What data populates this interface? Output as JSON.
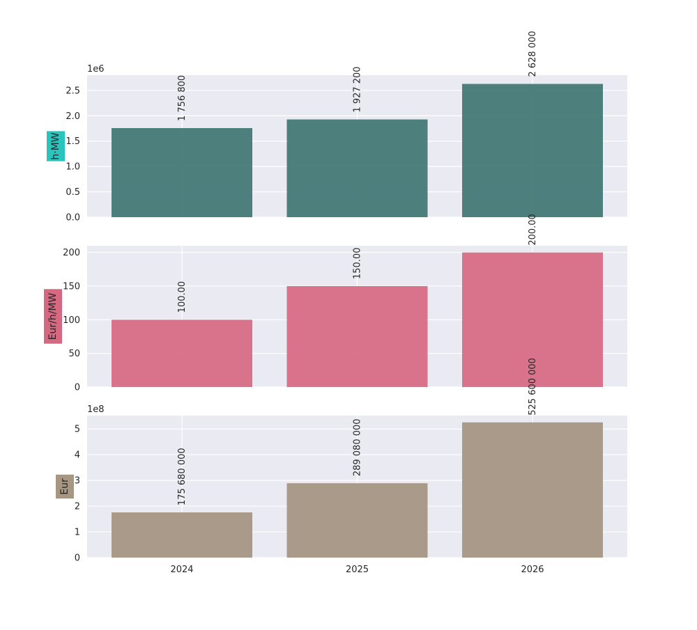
{
  "chart_data": [
    {
      "type": "bar",
      "categories": [
        "2024",
        "2025",
        "2026"
      ],
      "values": [
        1756800,
        1927200,
        2628000
      ],
      "value_labels": [
        "1 756 800",
        "1 927 200",
        "2 628 000"
      ],
      "ylabel": "h·MW",
      "ylabel_bg": "#2ac3bd",
      "offset_text": "1e6",
      "y_scale": 1000000,
      "ylim": [
        0,
        2.8
      ],
      "yticks": [
        "0.0",
        "0.5",
        "1.0",
        "1.5",
        "2.0",
        "2.5"
      ],
      "ytick_values": [
        0,
        0.5,
        1.0,
        1.5,
        2.0,
        2.5
      ],
      "bar_color": "#3f7573",
      "grid": true
    },
    {
      "type": "bar",
      "categories": [
        "2024",
        "2025",
        "2026"
      ],
      "values": [
        100,
        150,
        200
      ],
      "value_labels": [
        "100.00",
        "150.00",
        "200.00"
      ],
      "ylabel": "Eur/h/MW",
      "ylabel_bg": "#d66882",
      "offset_text": "",
      "y_scale": 1,
      "ylim": [
        0,
        210
      ],
      "yticks": [
        "0",
        "50",
        "100",
        "150",
        "200"
      ],
      "ytick_values": [
        0,
        50,
        100,
        150,
        200
      ],
      "bar_color": "#d66882",
      "grid": true
    },
    {
      "type": "bar",
      "categories": [
        "2024",
        "2025",
        "2026"
      ],
      "values": [
        175680000,
        289080000,
        525600000
      ],
      "value_labels": [
        "175 680 000",
        "289 080 000",
        "525 600 000"
      ],
      "ylabel": "Eur",
      "ylabel_bg": "#a69682",
      "offset_text": "1e8",
      "y_scale": 100000000,
      "ylim": [
        0,
        5.52
      ],
      "yticks": [
        "0",
        "1",
        "2",
        "3",
        "4",
        "5"
      ],
      "ytick_values": [
        0,
        1,
        2,
        3,
        4,
        5
      ],
      "bar_color": "#a39380",
      "grid": true
    }
  ],
  "colors": {
    "axes_bg": "#eaeaf2",
    "grid": "#ffffff",
    "text": "#262626"
  }
}
